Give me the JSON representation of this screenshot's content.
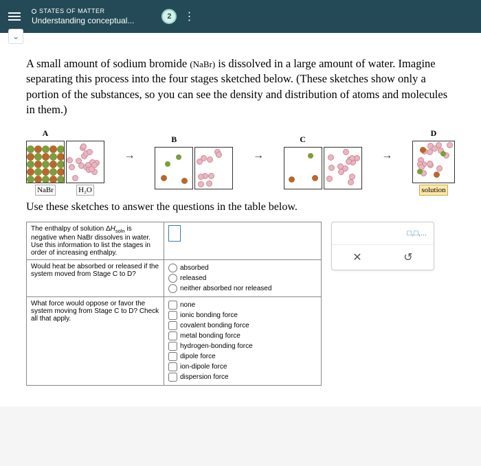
{
  "header": {
    "category": "STATES OF MATTER",
    "title": "Understanding conceptual...",
    "badge": "2"
  },
  "question": {
    "text_pre": "A small amount of sodium bromide ",
    "formula": "(NaBr)",
    "text_post": " is dissolved in a large amount of water. Imagine separating this process into the four stages sketched below. (These sketches show only a portion of the substances, so you can see the density and distribution of atoms and molecules in them.)"
  },
  "sketches": {
    "labels": [
      "A",
      "B",
      "C",
      "D"
    ],
    "sublabel_nabr": "NaBr",
    "sublabel_h2o": "H₂O",
    "sublabel_solution": "solution",
    "colors": {
      "na": "#b7682e",
      "br": "#7a9f3c",
      "water": "#e8b8c0",
      "border": "#333333"
    }
  },
  "instruction": "Use these sketches to answer the questions in the table below.",
  "table": {
    "row1": {
      "prompt_pre": "The enthalpy of solution Δ",
      "prompt_h": "H",
      "prompt_sub": "soln",
      "prompt_post": " is negative when NaBr dissolves in water. Use this information to list the stages in order of increasing enthalpy."
    },
    "row2": {
      "prompt": "Would heat be absorbed or released if the system moved from Stage C to D?",
      "options": [
        "absorbed",
        "released",
        "neither absorbed nor released"
      ]
    },
    "row3": {
      "prompt": "What force would oppose or favor the system moving from Stage C to D? Check all that apply.",
      "options": [
        "none",
        "ionic bonding force",
        "covalent bonding force",
        "metal bonding force",
        "hydrogen-bonding force",
        "dipole force",
        "ion-dipole force",
        "dispersion force"
      ]
    }
  },
  "panel": {
    "hint": "□,□,..."
  }
}
